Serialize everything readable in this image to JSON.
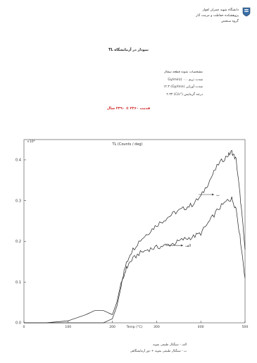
{
  "header": {
    "line1": "دانشگاه شهید چمران اهواز",
    "line2": "پژوهشکده حفاظت و مرمت آثار",
    "line3": "گروه سنجش"
  },
  "title": "نمودار در آزمایشگاه TL",
  "meta": {
    "line1": "مشخصات نمونه قطعه سفال",
    "line2": "شدت تریم Gy/min)) ۰.۰",
    "line3": "شدت آورایی (Gy/min) ۱۲.۳",
    "line4": "درجه گرمایش (°C/s) ۲.۳۳"
  },
  "period": "قدمت ۲۳۶۰ ± ۲۳۹۰ سال",
  "legend": {
    "line1": "الف - سیگنال طبیعی نمونه",
    "line2": "ب - سیگنال طبیعی نمونه + دوز آزمایشگاهی"
  },
  "chart_data": {
    "type": "line",
    "title": "TL (Counts / deg)",
    "xlabel": "Temp (°C)",
    "ylabel": "×10⁴",
    "xlim": [
      0,
      500
    ],
    "ylim": [
      0,
      0.45
    ],
    "yticks": [
      "0.0",
      "0.1",
      "0.2",
      "0.3",
      "0.4"
    ],
    "xticks": [
      "0",
      "100",
      "200",
      "300",
      "400",
      "500"
    ],
    "series": [
      {
        "name": "ب",
        "x": [
          0,
          50,
          100,
          140,
          160,
          180,
          200,
          210,
          220,
          230,
          240,
          260,
          280,
          300,
          320,
          340,
          360,
          380,
          400,
          420,
          440,
          460,
          470,
          480,
          490,
          500
        ],
        "values": [
          0.0,
          0.0,
          0.005,
          0.02,
          0.03,
          0.03,
          0.02,
          0.05,
          0.1,
          0.14,
          0.17,
          0.2,
          0.22,
          0.24,
          0.255,
          0.27,
          0.28,
          0.29,
          0.31,
          0.35,
          0.39,
          0.41,
          0.42,
          0.4,
          0.3,
          0.18
        ]
      },
      {
        "name": "الف",
        "x": [
          0,
          50,
          100,
          140,
          160,
          180,
          200,
          210,
          220,
          230,
          240,
          260,
          280,
          300,
          320,
          340,
          360,
          380,
          400,
          420,
          440,
          460,
          470,
          480,
          490,
          500
        ],
        "values": [
          0.0,
          0.0,
          0.0,
          0.0,
          0.0,
          0.0,
          0.01,
          0.04,
          0.09,
          0.13,
          0.15,
          0.17,
          0.18,
          0.185,
          0.19,
          0.195,
          0.205,
          0.21,
          0.22,
          0.25,
          0.28,
          0.3,
          0.305,
          0.28,
          0.2,
          0.11
        ]
      }
    ],
    "annotations": [
      "ب",
      "الف"
    ],
    "color": "#222222"
  }
}
